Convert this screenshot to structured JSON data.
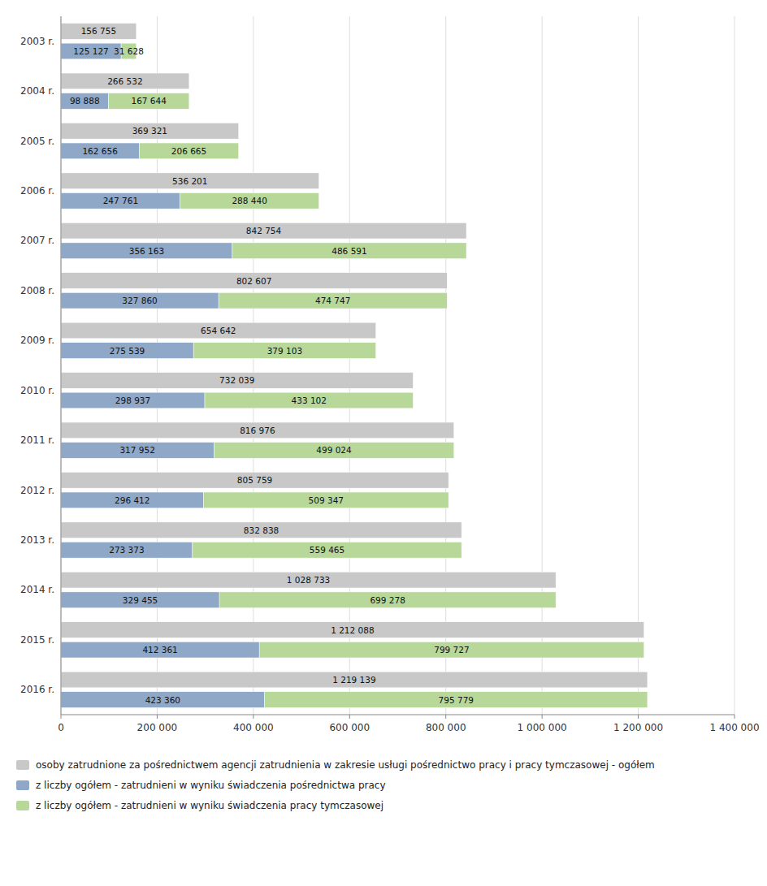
{
  "chart_data": {
    "type": "bar",
    "orientation": "horizontal",
    "categories": [
      "2003 r.",
      "2004 r.",
      "2005 r.",
      "2006 r.",
      "2007 r.",
      "2008 r.",
      "2009 r.",
      "2010 r.",
      "2011 r.",
      "2012 r.",
      "2013 r.",
      "2014 r.",
      "2015 r.",
      "2016 r."
    ],
    "series": [
      {
        "name": "osoby zatrudnione za pośrednictwem agencji zatrudnienia w zakresie usługi pośrednictwo pracy i pracy tymczasowej - ogółem",
        "color": "#c8c8c8",
        "stacked": false,
        "values": [
          156755,
          266532,
          369321,
          536201,
          842754,
          802607,
          654642,
          732039,
          816976,
          805759,
          832838,
          1028733,
          1212088,
          1219139
        ],
        "value_labels": [
          "156 755",
          "266 532",
          "369 321",
          "536 201",
          "842 754",
          "802 607",
          "654 642",
          "732 039",
          "816 976",
          "805 759",
          "832 838",
          "1 028 733",
          "1 212 088",
          "1 219 139"
        ]
      },
      {
        "name": "z liczby ogółem - zatrudnieni w wyniku świadczenia pośrednictwa pracy",
        "color": "#8fa8c8",
        "stacked": true,
        "values": [
          125127,
          98888,
          162656,
          247761,
          356163,
          327860,
          275539,
          298937,
          317952,
          296412,
          273373,
          329455,
          412361,
          423360
        ],
        "value_labels": [
          "125 127",
          "98 888",
          "162 656",
          "247 761",
          "356 163",
          "327 860",
          "275 539",
          "298 937",
          "317 952",
          "296 412",
          "273 373",
          "329 455",
          "412 361",
          "423 360"
        ]
      },
      {
        "name": "z liczby ogółem - zatrudnieni w wyniku świadczenia pracy tymczasowej",
        "color": "#b8d89a",
        "stacked": true,
        "values": [
          31628,
          167644,
          206665,
          288440,
          486591,
          474747,
          379103,
          433102,
          499024,
          509347,
          559465,
          699278,
          799727,
          795779
        ],
        "value_labels": [
          "31 628",
          "167 644",
          "206 665",
          "288 440",
          "486 591",
          "474 747",
          "379 103",
          "433 102",
          "499 024",
          "509 347",
          "559 465",
          "699 278",
          "799 727",
          "795 779"
        ]
      }
    ],
    "xlim": [
      0,
      1400000
    ],
    "xticks": [
      0,
      {
        "value": 200000,
        "label": "200 000"
      },
      {
        "value": 400000,
        "label": "400 000"
      },
      {
        "value": 600000,
        "label": "600 000"
      },
      {
        "value": 800000,
        "label": "800 000"
      },
      {
        "value": 1000000,
        "label": "1 000 000"
      },
      {
        "value": 1200000,
        "label": "1 200 000"
      },
      {
        "value": 1400000,
        "label": "1 400 000"
      }
    ],
    "grid": true,
    "data_labels": true,
    "legend": "lower left"
  }
}
